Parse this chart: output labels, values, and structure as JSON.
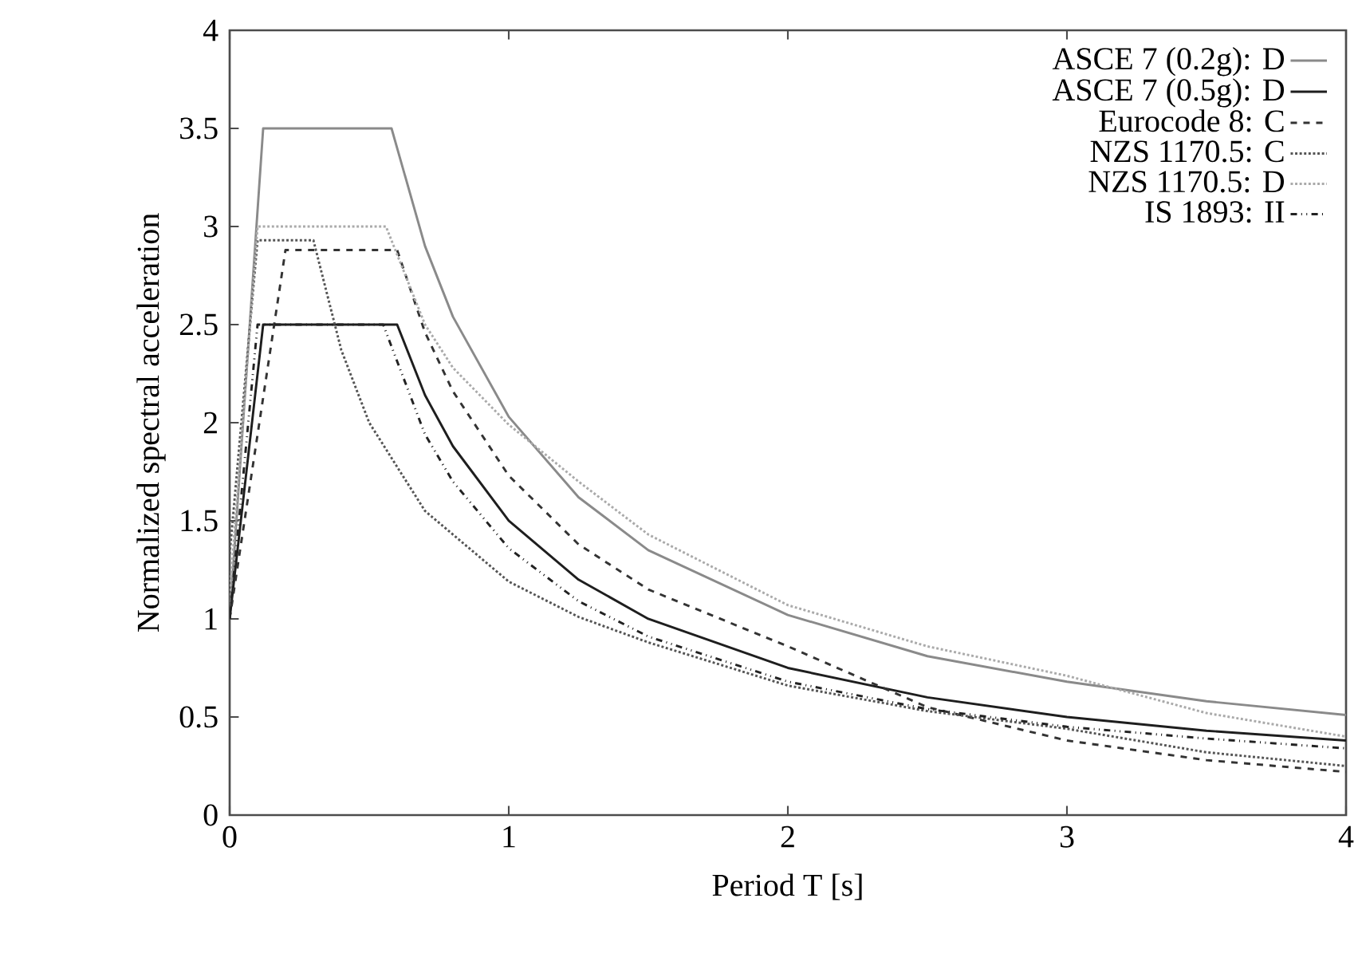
{
  "chart_data": {
    "type": "line",
    "xlabel": "Period T [s]",
    "ylabel": "Normalized spectral acceleration",
    "xlim": [
      0,
      4
    ],
    "ylim": [
      0,
      4
    ],
    "xticks": [
      0,
      1,
      2,
      3,
      4
    ],
    "yticks": [
      0,
      0.5,
      1,
      1.5,
      2,
      2.5,
      3,
      3.5,
      4
    ],
    "grid": false,
    "legend": "top right",
    "series": [
      {
        "name": "ASCE 7 (0.2g): D",
        "color": "#8a8a8a",
        "line_style": "solid",
        "x": [
          0,
          0.12,
          0.58,
          0.7,
          0.8,
          1,
          1.25,
          1.5,
          2,
          2.5,
          3,
          3.5,
          4
        ],
        "values": [
          1,
          3.5,
          3.5,
          2.9,
          2.54,
          2.03,
          1.62,
          1.35,
          1.02,
          0.81,
          0.68,
          0.58,
          0.51
        ]
      },
      {
        "name": "ASCE 7 (0.5g): D",
        "color": "#1e1e1e",
        "line_style": "solid",
        "x": [
          0,
          0.12,
          0.6,
          0.7,
          0.8,
          1,
          1.25,
          1.5,
          2,
          2.5,
          3,
          3.5,
          4
        ],
        "values": [
          1,
          2.5,
          2.5,
          2.14,
          1.88,
          1.5,
          1.2,
          1.0,
          0.75,
          0.6,
          0.5,
          0.43,
          0.38
        ]
      },
      {
        "name": "Eurocode 8: C",
        "color": "#333333",
        "line_style": "dashed",
        "x": [
          0,
          0.2,
          0.6,
          0.7,
          0.8,
          1,
          1.25,
          1.5,
          2,
          2.5,
          3,
          3.5,
          4
        ],
        "values": [
          1,
          2.88,
          2.88,
          2.46,
          2.16,
          1.73,
          1.38,
          1.15,
          0.86,
          0.55,
          0.38,
          0.28,
          0.22
        ]
      },
      {
        "name": "NZS 1170.5: C",
        "color": "#555555",
        "line_style": "dotted",
        "x": [
          0,
          0.1,
          0.3,
          0.4,
          0.5,
          0.7,
          1,
          1.25,
          1.5,
          2,
          2.5,
          3,
          3.5,
          4
        ],
        "values": [
          1.33,
          2.93,
          2.93,
          2.37,
          2.0,
          1.55,
          1.19,
          1.01,
          0.88,
          0.66,
          0.53,
          0.44,
          0.32,
          0.25
        ]
      },
      {
        "name": "NZS 1170.5: D",
        "color": "#aaaaaa",
        "line_style": "dotted",
        "x": [
          0,
          0.1,
          0.56,
          0.7,
          0.8,
          1,
          1.25,
          1.5,
          2,
          2.5,
          3,
          3.5,
          4
        ],
        "values": [
          1.12,
          3.0,
          3.0,
          2.5,
          2.28,
          1.99,
          1.7,
          1.43,
          1.07,
          0.86,
          0.71,
          0.52,
          0.4
        ]
      },
      {
        "name": "IS 1893: II",
        "color": "#222222",
        "line_style": "dashdot",
        "x": [
          0,
          0.1,
          0.55,
          0.7,
          0.8,
          1,
          1.25,
          1.5,
          2,
          2.5,
          3,
          3.5,
          4
        ],
        "values": [
          1,
          2.5,
          2.5,
          1.94,
          1.7,
          1.36,
          1.09,
          0.91,
          0.68,
          0.54,
          0.45,
          0.39,
          0.34
        ]
      }
    ]
  }
}
